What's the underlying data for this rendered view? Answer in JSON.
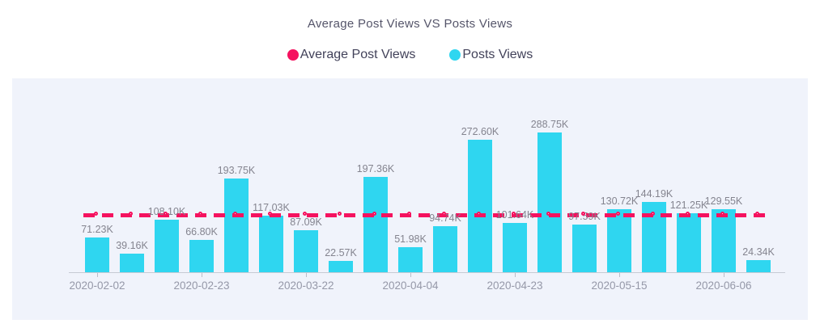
{
  "title": "Average Post Views VS Posts Views",
  "legend": {
    "items": [
      {
        "label": "Average Post Views",
        "color": "#f5125f"
      },
      {
        "label": "Posts Views",
        "color": "#2fd6f0"
      }
    ],
    "position": "top"
  },
  "chart_data": {
    "type": "bar",
    "title": "Average Post Views VS Posts Views",
    "bar_series_name": "Posts Views",
    "values": [
      71.23,
      39.16,
      108.1,
      66.8,
      193.75,
      117.03,
      87.09,
      22.57,
      197.36,
      51.98,
      94.74,
      272.6,
      101.64,
      288.75,
      97.59,
      130.72,
      144.19,
      121.25,
      129.55,
      24.34
    ],
    "value_labels": [
      "71.23K",
      "39.16K",
      "108.10K",
      "66.80K",
      "193.75K",
      "117.03K",
      "87.09K",
      "22.57K",
      "197.36K",
      "51.98K",
      "94.74K",
      "272.60K",
      "101.64K",
      "288.75K",
      "97.59K",
      "130.72K",
      "144.19K",
      "121.25K",
      "129.55K",
      "24.34K"
    ],
    "unit": "K",
    "x_tick_labels": [
      "2020-02-02",
      "2020-02-23",
      "2020-03-22",
      "2020-04-04",
      "2020-04-23",
      "2020-05-15",
      "2020-06-06"
    ],
    "x_tick_bar_indices": [
      0,
      3,
      6,
      9,
      12,
      15,
      18
    ],
    "average_line": {
      "series_name": "Average Post Views",
      "value": 118.03,
      "style": "dashed"
    },
    "xlabel": "",
    "ylabel": "",
    "ylim": [
      0,
      300
    ],
    "grid": false,
    "legend_position": "top",
    "bar_color": "#2fd6f0",
    "line_color": "#f5125f",
    "panel_background": "#f0f3fb"
  }
}
